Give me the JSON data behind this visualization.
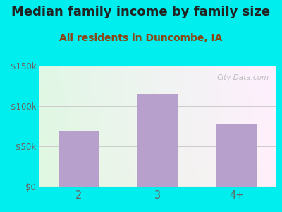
{
  "title": "Median family income by family size",
  "subtitle": "All residents in Duncombe, IA",
  "categories": [
    "2",
    "3",
    "4+"
  ],
  "values": [
    68000,
    115000,
    78000
  ],
  "bar_color": "#b8a0cc",
  "title_fontsize": 13,
  "subtitle_fontsize": 10,
  "title_color": "#222222",
  "subtitle_color": "#8B4513",
  "tick_label_color": "#666666",
  "ylim": [
    0,
    150000
  ],
  "yticks": [
    0,
    50000,
    100000,
    150000
  ],
  "ytick_labels": [
    "$0",
    "$50k",
    "$100k",
    "$150k"
  ],
  "background_outer": "#00EEEE",
  "watermark": "City-Data.com"
}
